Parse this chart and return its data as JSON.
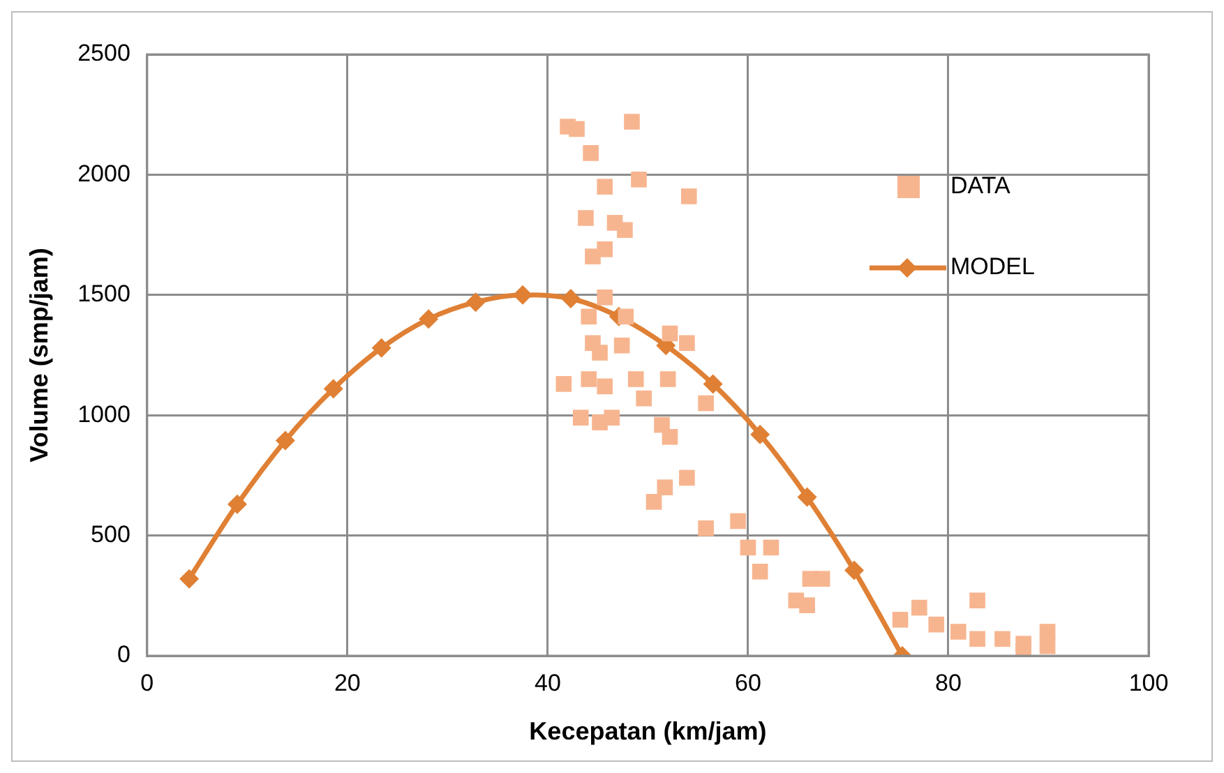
{
  "chart_data": {
    "type": "scatter",
    "xlabel": "Kecepatan (km/jam)",
    "ylabel": "Volume (smp/jam)",
    "xlim": [
      0,
      100
    ],
    "xticks": [
      0,
      20,
      40,
      60,
      80,
      100
    ],
    "ylim": [
      0,
      2500
    ],
    "yticks": [
      0,
      500,
      1000,
      1500,
      2000,
      2500
    ],
    "grid": true,
    "legend": "top right",
    "series": [
      {
        "name": "DATA",
        "marker": "square",
        "color": "#f7b58f",
        "x": [
          42.0,
          42.9,
          48.4,
          44.3,
          45.7,
          49.1,
          54.1,
          43.8,
          46.7,
          47.7,
          44.5,
          45.7,
          45.7,
          44.1,
          47.8,
          44.5,
          52.2,
          53.9,
          41.6,
          44.1,
          45.7,
          48.8,
          52.0,
          43.3,
          46.4,
          49.6,
          51.4,
          52.2,
          55.8,
          53.9,
          51.7,
          50.6,
          55.8,
          59.0,
          60.0,
          62.3,
          61.2,
          66.2,
          67.4,
          64.8,
          65.9,
          77.1,
          75.2,
          78.8,
          82.9,
          81.0,
          82.9,
          85.4,
          87.5,
          89.9,
          89.9,
          87.5,
          45.2,
          47.4,
          45.2
        ],
        "values": [
          2200,
          2190,
          2220,
          2090,
          1950,
          1980,
          1910,
          1820,
          1800,
          1770,
          1660,
          1690,
          1490,
          1410,
          1410,
          1300,
          1340,
          1300,
          1130,
          1150,
          1120,
          1150,
          1150,
          990,
          990,
          1070,
          960,
          910,
          1050,
          740,
          700,
          640,
          530,
          560,
          450,
          450,
          350,
          320,
          320,
          230,
          210,
          200,
          150,
          130,
          230,
          100,
          70,
          70,
          50,
          100,
          40,
          20,
          1260,
          1290,
          970
        ]
      },
      {
        "name": "MODEL",
        "type": "line",
        "marker": "diamond",
        "color": "#df8035",
        "x": [
          4.2,
          9.0,
          13.8,
          18.6,
          23.4,
          28.1,
          32.8,
          37.5,
          42.3,
          47.1,
          51.8,
          56.5,
          61.2,
          65.9,
          70.6,
          75.4
        ],
        "values": [
          320,
          630,
          895,
          1110,
          1280,
          1400,
          1470,
          1500,
          1485,
          1410,
          1290,
          1130,
          920,
          660,
          355,
          0
        ]
      }
    ]
  }
}
